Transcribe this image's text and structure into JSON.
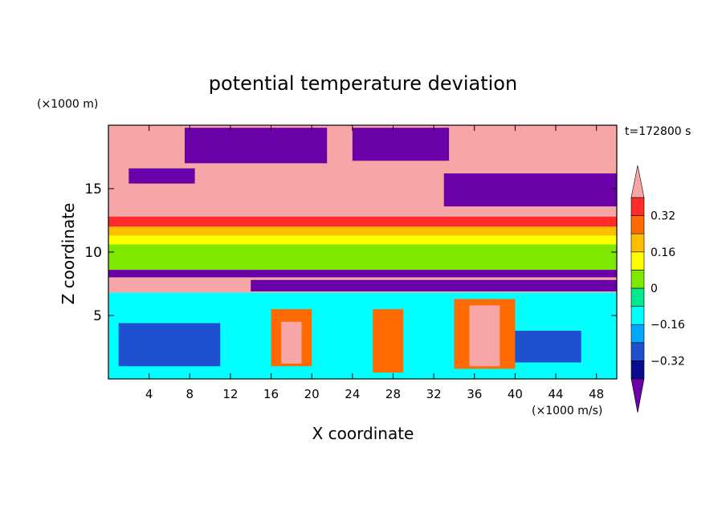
{
  "chart_data": {
    "type": "heatmap",
    "title": "potential temperature deviation",
    "xlabel": "X coordinate",
    "ylabel": "Z coordinate",
    "x_unit": "(×1000 m/s)",
    "y_unit": "(×1000 m)",
    "time_label": "t=172800 s",
    "xlim": [
      0,
      50
    ],
    "ylim": [
      0,
      20
    ],
    "x_ticks": [
      "4",
      "8",
      "12",
      "16",
      "20",
      "24",
      "28",
      "32",
      "36",
      "40",
      "44",
      "48"
    ],
    "y_ticks": [
      "5",
      "10",
      "15"
    ],
    "colorbar": {
      "levels": [
        -0.4,
        -0.32,
        -0.24,
        -0.16,
        -0.08,
        0,
        0.08,
        0.16,
        0.24,
        0.32,
        0.4
      ],
      "colors": [
        "#6a00a8",
        "#0a0a8f",
        "#1e50d0",
        "#00a8ff",
        "#00ffff",
        "#00e890",
        "#7ee800",
        "#ffff00",
        "#ffbe00",
        "#ff6a00",
        "#ff2a2a",
        "#f6a6a6"
      ],
      "tick_labels": [
        "0.32",
        "0.16",
        "0",
        "−0.16",
        "−0.32"
      ],
      "extend": "both"
    },
    "bands": [
      {
        "zmin": 16.9,
        "zmax": 20,
        "value": 0.45
      },
      {
        "zmin": 15.0,
        "zmax": 16.9,
        "value": 0.45
      },
      {
        "zmin": 12.8,
        "zmax": 15.0,
        "value": 0.45
      },
      {
        "zmin": 12.0,
        "zmax": 12.8,
        "value": 0.36
      },
      {
        "zmin": 11.3,
        "zmax": 12.0,
        "value": 0.2
      },
      {
        "zmin": 10.6,
        "zmax": 11.3,
        "value": 0.1
      },
      {
        "zmin": 8.6,
        "zmax": 10.6,
        "value": 0.06
      },
      {
        "zmin": 8.0,
        "zmax": 8.6,
        "value": -0.45
      },
      {
        "zmin": 6.8,
        "zmax": 8.0,
        "value": 0.45
      },
      {
        "zmin": 0,
        "zmax": 6.8,
        "value": -0.1
      }
    ],
    "features": [
      {
        "value": -0.45,
        "x": [
          7.5,
          21.5,
          21.5,
          7.5
        ],
        "z": [
          17.0,
          17.0,
          19.8,
          19.8
        ]
      },
      {
        "value": -0.45,
        "x": [
          24.0,
          33.5,
          33.5,
          24.0
        ],
        "z": [
          17.2,
          17.2,
          19.8,
          19.8
        ]
      },
      {
        "value": -0.45,
        "x": [
          33.0,
          50.0,
          50.0,
          33.0
        ],
        "z": [
          16.2,
          16.2,
          13.6,
          13.6
        ]
      },
      {
        "value": -0.45,
        "x": [
          2.0,
          8.5,
          8.5,
          2.0
        ],
        "z": [
          16.6,
          16.6,
          15.4,
          15.4
        ]
      },
      {
        "value": -0.45,
        "x": [
          14.0,
          50.0,
          50.0,
          14.0
        ],
        "z": [
          7.8,
          7.8,
          6.9,
          6.9
        ]
      },
      {
        "value": -0.3,
        "x": [
          1.0,
          11.0,
          11.0,
          1.0
        ],
        "z": [
          4.4,
          4.4,
          1.0,
          1.0
        ]
      },
      {
        "value": 0.3,
        "x": [
          16.0,
          20.0,
          20.0,
          16.0
        ],
        "z": [
          5.5,
          5.5,
          1.0,
          1.0
        ]
      },
      {
        "value": 0.45,
        "x": [
          17.0,
          19.0,
          19.0,
          17.0
        ],
        "z": [
          4.5,
          4.5,
          1.2,
          1.2
        ]
      },
      {
        "value": 0.3,
        "x": [
          34.0,
          40.0,
          40.0,
          34.0
        ],
        "z": [
          6.3,
          6.3,
          0.8,
          0.8
        ]
      },
      {
        "value": 0.45,
        "x": [
          35.5,
          38.5,
          38.5,
          35.5
        ],
        "z": [
          5.8,
          5.8,
          1.0,
          1.0
        ]
      },
      {
        "value": -0.3,
        "x": [
          40.0,
          46.5,
          46.5,
          40.0
        ],
        "z": [
          3.8,
          3.8,
          1.3,
          1.3
        ]
      },
      {
        "value": 0.25,
        "x": [
          26.0,
          29.0,
          29.0,
          26.0
        ],
        "z": [
          5.5,
          5.5,
          0.5,
          0.5
        ]
      }
    ]
  }
}
